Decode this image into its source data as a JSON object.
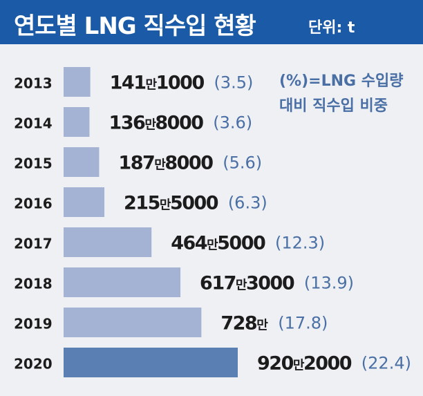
{
  "header": {
    "title": "연도별  LNG 직수입 현황",
    "unit": "단위: t",
    "bg_color": "#1a5aa6"
  },
  "note": {
    "line1": "(%)=LNG 수입량",
    "line2": "대비 직수입 비중"
  },
  "colors": {
    "bar": "#a4b3d4",
    "bar_highlight": "#5a7fb3",
    "pct_text": "#4a6fa5"
  },
  "chart_data": {
    "type": "bar",
    "orientation": "horizontal",
    "categories": [
      "2013",
      "2014",
      "2015",
      "2016",
      "2017",
      "2018",
      "2019",
      "2020"
    ],
    "values": [
      1411000,
      1368000,
      1878000,
      2155000,
      4645000,
      6173000,
      7280000,
      9202000
    ],
    "value_labels": [
      [
        "141",
        "만",
        "1000"
      ],
      [
        "136",
        "만",
        "8000"
      ],
      [
        "187",
        "만",
        "8000"
      ],
      [
        "215",
        "만",
        "5000"
      ],
      [
        "464",
        "만",
        "5000"
      ],
      [
        "617",
        "만",
        "3000"
      ],
      [
        "728",
        "만",
        ""
      ],
      [
        "920",
        "만",
        "2000"
      ]
    ],
    "share_percent": [
      3.5,
      3.6,
      5.6,
      6.3,
      12.3,
      13.9,
      17.8,
      22.4
    ],
    "share_labels": [
      "(3.5)",
      "(3.6)",
      "(5.6)",
      "(6.3)",
      "(12.3)",
      "(13.9)",
      "(17.8)",
      "(22.4)"
    ],
    "highlight_index": 7,
    "title": "연도별  LNG 직수입 현황",
    "unit": "단위: t"
  }
}
